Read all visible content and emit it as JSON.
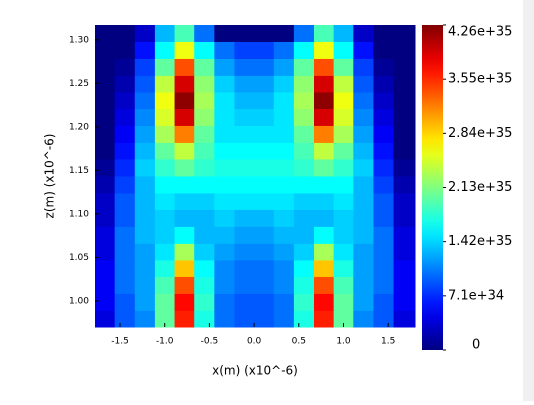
{
  "chart_data": {
    "type": "heatmap",
    "colormap": "jet",
    "xlabel": "x(m) (x10^-6)",
    "ylabel": "z(m) (x10^-6)",
    "xlim": [
      -1.78,
      1.8
    ],
    "ylim": [
      0.97,
      1.317
    ],
    "xticks": [
      -1.5,
      {
        "value": -1.0,
        "label": "-1.0"
      },
      -0.5,
      {
        "value": 0,
        "label": "0.0"
      },
      0.5,
      {
        "value": 1.0,
        "label": "1.0"
      },
      1.5
    ],
    "yticks": [
      {
        "value": 1.0,
        "label": "1.00"
      },
      {
        "value": 1.05,
        "label": "1.05"
      },
      {
        "value": 1.1,
        "label": "1.10"
      },
      {
        "value": 1.15,
        "label": "1.15"
      },
      {
        "value": 1.2,
        "label": "1.20"
      },
      {
        "value": 1.25,
        "label": "1.25"
      },
      {
        "value": 1.3,
        "label": "1.30"
      }
    ],
    "clim": [
      0,
      4.26e+35
    ],
    "cticks": [
      0,
      {
        "value": 7.1e+34,
        "label": "7.1e+34"
      },
      {
        "value": 1.42e+35,
        "label": "1.42e+35"
      },
      {
        "value": 2.13e+35,
        "label": "2.13e+35"
      },
      {
        "value": 2.84e+35,
        "label": "2.84e+35"
      },
      {
        "value": 3.55e+35,
        "label": "3.55e+35"
      },
      {
        "value": 4.26e+35,
        "label": "4.26e+35"
      }
    ],
    "x": [
      -1.67,
      -1.45,
      -1.22,
      -1.0,
      -0.78,
      -0.56,
      -0.33,
      -0.11,
      0.11,
      0.33,
      0.56,
      0.78,
      1.0,
      1.22,
      1.45,
      1.67
    ],
    "y": [
      1.307,
      1.288,
      1.268,
      1.249,
      1.23,
      1.211,
      1.191,
      1.172,
      1.153,
      1.133,
      1.114,
      1.095,
      1.075,
      1.056,
      1.037,
      1.018,
      0.998,
      0.979
    ],
    "z": [
      [
        0,
        0,
        3e+34,
        1.3e+35,
        1.9e+35,
        1e+35,
        0,
        0,
        0,
        0,
        1e+35,
        1.9e+35,
        1.3e+35,
        3e+34,
        0,
        0
      ],
      [
        0,
        0,
        6e+34,
        1.6e+35,
        2.6e+35,
        1.6e+35,
        1e+35,
        8e+34,
        8e+34,
        1e+35,
        1.6e+35,
        2.6e+35,
        1.6e+35,
        6e+34,
        0,
        0
      ],
      [
        0,
        1e+34,
        8e+34,
        2e+35,
        3.4e+35,
        2e+35,
        1.2e+35,
        1e+35,
        1e+35,
        1.2e+35,
        2e+35,
        3.4e+35,
        2e+35,
        8e+34,
        1e+34,
        0
      ],
      [
        0,
        2e+34,
        9e+34,
        2.4e+35,
        3.9e+35,
        2.2e+35,
        1.4e+35,
        1.2e+35,
        1.2e+35,
        1.4e+35,
        2.2e+35,
        3.9e+35,
        2.4e+35,
        9e+34,
        2e+34,
        0
      ],
      [
        0,
        3e+34,
        1e+35,
        2.6e+35,
        4.2e+35,
        2.3e+35,
        1.5e+35,
        1.3e+35,
        1.3e+35,
        1.5e+35,
        2.3e+35,
        4.2e+35,
        2.6e+35,
        1e+35,
        3e+34,
        0
      ],
      [
        0,
        4e+34,
        1.1e+35,
        2.5e+35,
        3.9e+35,
        2.2e+35,
        1.5e+35,
        1.4e+35,
        1.4e+35,
        1.5e+35,
        2.2e+35,
        3.9e+35,
        2.5e+35,
        1.1e+35,
        4e+34,
        0
      ],
      [
        0,
        5e+34,
        1.2e+35,
        2.3e+35,
        3.2e+35,
        2e+35,
        1.5e+35,
        1.5e+35,
        1.5e+35,
        1.5e+35,
        2e+35,
        3.2e+35,
        2.3e+35,
        1.2e+35,
        5e+34,
        0
      ],
      [
        0,
        6e+34,
        1.3e+35,
        2e+35,
        2.4e+35,
        1.9e+35,
        1.6e+35,
        1.6e+35,
        1.6e+35,
        1.6e+35,
        1.9e+35,
        2.4e+35,
        2e+35,
        1.3e+35,
        6e+34,
        0
      ],
      [
        1e+34,
        7e+34,
        1.4e+35,
        1.8e+35,
        2e+35,
        1.8e+35,
        1.7e+35,
        1.7e+35,
        1.7e+35,
        1.7e+35,
        1.8e+35,
        2e+35,
        1.8e+35,
        1.4e+35,
        7e+34,
        1e+34
      ],
      [
        2e+34,
        8e+34,
        1.3e+35,
        1.6e+35,
        1.6e+35,
        1.6e+35,
        1.6e+35,
        1.6e+35,
        1.6e+35,
        1.6e+35,
        1.6e+35,
        1.6e+35,
        1.6e+35,
        1.3e+35,
        8e+34,
        2e+34
      ],
      [
        3e+34,
        9e+34,
        1.3e+35,
        1.5e+35,
        1.4e+35,
        1.4e+35,
        1.5e+35,
        1.5e+35,
        1.5e+35,
        1.5e+35,
        1.4e+35,
        1.4e+35,
        1.5e+35,
        1.3e+35,
        9e+34,
        3e+34
      ],
      [
        3e+34,
        9e+34,
        1.3e+35,
        1.4e+35,
        1.3e+35,
        1.3e+35,
        1.4e+35,
        1.3e+35,
        1.3e+35,
        1.4e+35,
        1.3e+35,
        1.3e+35,
        1.4e+35,
        1.3e+35,
        9e+34,
        3e+34
      ],
      [
        4e+34,
        1e+35,
        1.3e+35,
        1.4e+35,
        1.6e+35,
        1.3e+35,
        1.3e+35,
        1.2e+35,
        1.2e+35,
        1.3e+35,
        1.3e+35,
        1.6e+35,
        1.4e+35,
        1.3e+35,
        1e+35,
        4e+34
      ],
      [
        4e+34,
        1e+35,
        1.2e+35,
        1.5e+35,
        2.3e+35,
        1.4e+35,
        1.2e+35,
        1.1e+35,
        1.1e+35,
        1.2e+35,
        1.4e+35,
        2.3e+35,
        1.5e+35,
        1.2e+35,
        1e+35,
        4e+34
      ],
      [
        5e+34,
        1e+35,
        1.2e+35,
        1.7e+35,
        2.9e+35,
        1.6e+35,
        1.1e+35,
        1e+35,
        1e+35,
        1.1e+35,
        1.6e+35,
        2.9e+35,
        1.7e+35,
        1.2e+35,
        1e+35,
        5e+34
      ],
      [
        5e+34,
        1e+35,
        1.2e+35,
        1.9e+35,
        3.4e+35,
        1.7e+35,
        1.1e+35,
        1e+35,
        1e+35,
        1.1e+35,
        1.7e+35,
        3.4e+35,
        1.9e+35,
        1.2e+35,
        1e+35,
        5e+34
      ],
      [
        5e+34,
        9e+34,
        1.2e+35,
        2e+35,
        3.7e+35,
        1.8e+35,
        1e+35,
        9e+34,
        9e+34,
        1e+35,
        1.8e+35,
        3.7e+35,
        2e+35,
        1.2e+35,
        9e+34,
        5e+34
      ],
      [
        4e+34,
        9e+34,
        1.1e+35,
        2e+35,
        3.6e+35,
        1.7e+35,
        1e+35,
        9e+34,
        9e+34,
        1e+35,
        1.7e+35,
        3.6e+35,
        2e+35,
        1.1e+35,
        9e+34,
        4e+34
      ]
    ]
  }
}
